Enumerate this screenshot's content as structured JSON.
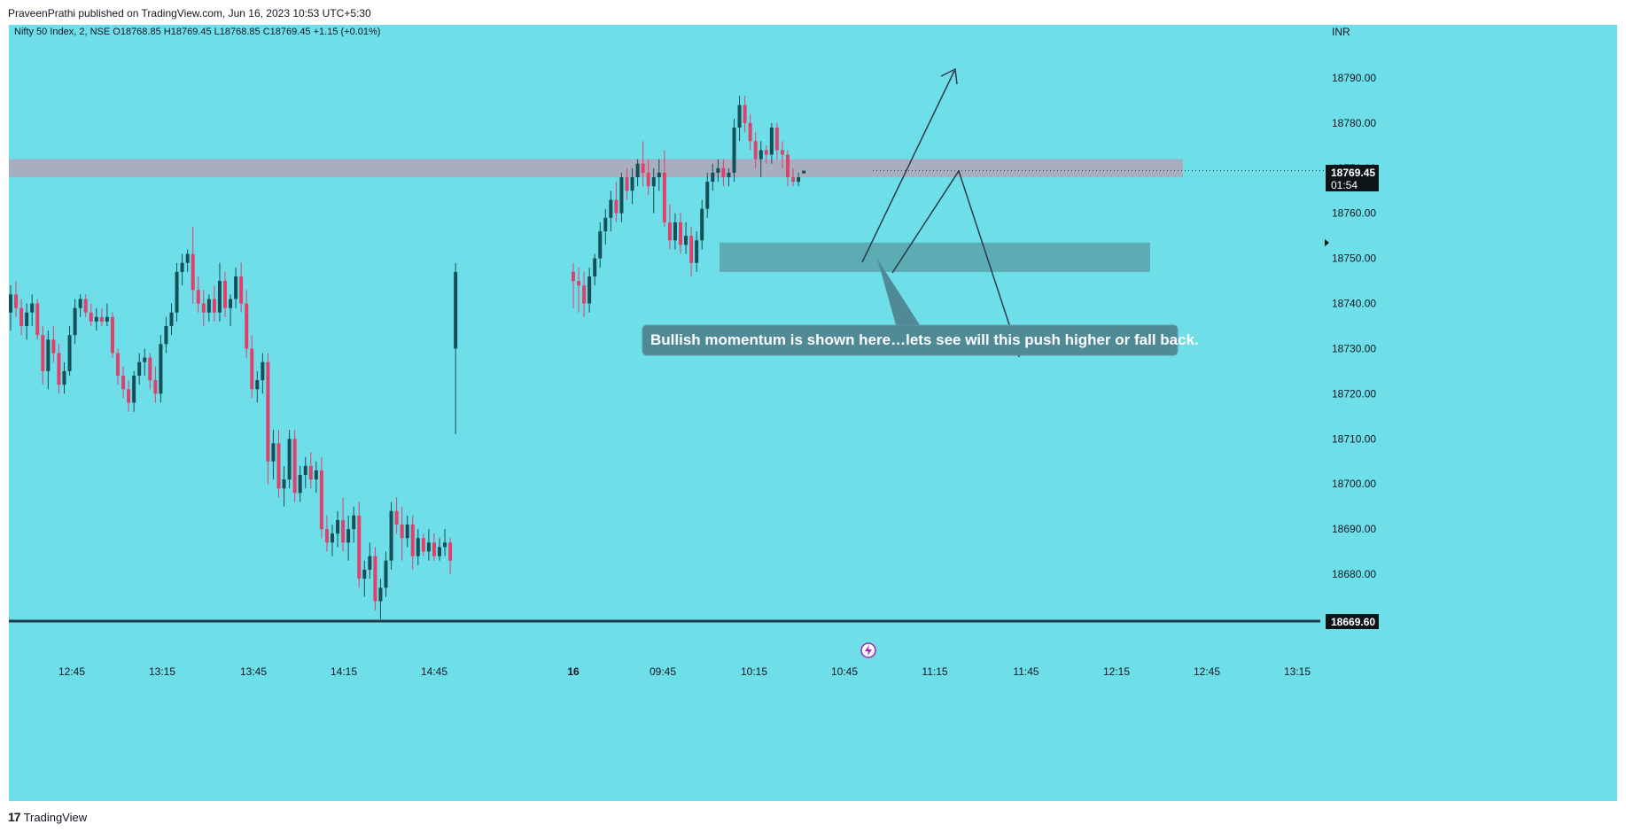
{
  "header": {
    "published": "PraveenPrathi published on TradingView.com, Jun 16, 2023 10:53 UTC+5:30"
  },
  "legend": {
    "symbol": "Nifty 50 Index, 2, NSE",
    "open": "O18768.85",
    "high": "H18769.45",
    "low": "L18768.85",
    "close": "C18769.45",
    "change": "+1.15 (+0.01%)"
  },
  "currency": "INR",
  "last_price": {
    "value": "18769.45",
    "countdown": "01:54"
  },
  "support_line": {
    "label": "18669.60"
  },
  "annotation": {
    "text": "Bullish momentum is shown here…lets see will this push higher or fall back."
  },
  "colors": {
    "background": "#6edee9",
    "up_candle": "#145058",
    "down_candle": "#e0406a",
    "resistance_zone": "#b0a6b8",
    "demand_zone": "#5aa6ad",
    "callout": "#4f8a96",
    "line": "#223a4a"
  },
  "footer": {
    "brand": "TradingView"
  },
  "chart_data": {
    "type": "candlestick",
    "title": "Nifty 50 Index, 2, NSE",
    "xlabel": "",
    "ylabel": "",
    "currency": "INR",
    "y_ticks": [
      18680,
      18690,
      18700,
      18710,
      18720,
      18730,
      18740,
      18750,
      18760,
      18770,
      18780,
      18790
    ],
    "y_tick_labels": [
      "18680.00",
      "18690.00",
      "18700.00",
      "18710.00",
      "18720.00",
      "18730.00",
      "18740.00",
      "18750.00",
      "18760.00",
      "18770.00",
      "18780.00",
      "18790.00"
    ],
    "ylim": [
      18669.0,
      18799.0
    ],
    "x_ticks": [
      {
        "label": "12:45",
        "pos": 81
      },
      {
        "label": "13:15",
        "pos": 183
      },
      {
        "label": "13:45",
        "pos": 286
      },
      {
        "label": "14:15",
        "pos": 388
      },
      {
        "label": "14:45",
        "pos": 490
      },
      {
        "label": "16",
        "pos": 647
      },
      {
        "label": "09:45",
        "pos": 748
      },
      {
        "label": "10:15",
        "pos": 851
      },
      {
        "label": "10:45",
        "pos": 953
      },
      {
        "label": "11:15",
        "pos": 1055
      },
      {
        "label": "11:45",
        "pos": 1158
      },
      {
        "label": "12:15",
        "pos": 1260
      },
      {
        "label": "12:45",
        "pos": 1362
      },
      {
        "label": "13:15",
        "pos": 1464
      }
    ],
    "candles": [
      [
        18738,
        18744,
        18734,
        18742
      ],
      [
        18742,
        18745,
        18737,
        18739
      ],
      [
        18739,
        18741,
        18733,
        18735
      ],
      [
        18735,
        18740,
        18732,
        18738
      ],
      [
        18738,
        18742,
        18735,
        18740
      ],
      [
        18740,
        18741,
        18732,
        18733
      ],
      [
        18733,
        18735,
        18722,
        18725
      ],
      [
        18725,
        18734,
        18721,
        18732
      ],
      [
        18732,
        18735,
        18727,
        18729
      ],
      [
        18729,
        18731,
        18720,
        18722
      ],
      [
        18722,
        18727,
        18720,
        18725
      ],
      [
        18725,
        18735,
        18724,
        18733
      ],
      [
        18733,
        18741,
        18731,
        18739
      ],
      [
        18739,
        18742,
        18737,
        18741
      ],
      [
        18741,
        18742,
        18737,
        18738
      ],
      [
        18738,
        18740,
        18735,
        18736
      ],
      [
        18736,
        18739,
        18734,
        18737
      ],
      [
        18737,
        18739,
        18735,
        18736
      ],
      [
        18736,
        18740,
        18735,
        18737
      ],
      [
        18737,
        18738,
        18728,
        18729
      ],
      [
        18729,
        18730,
        18722,
        18724
      ],
      [
        18724,
        18726,
        18719,
        18721
      ],
      [
        18721,
        18723,
        18716,
        18718
      ],
      [
        18718,
        18725,
        18716,
        18724
      ],
      [
        18724,
        18729,
        18722,
        18727
      ],
      [
        18727,
        18730,
        18724,
        18728
      ],
      [
        18728,
        18729,
        18721,
        18723
      ],
      [
        18723,
        18726,
        18718,
        18720
      ],
      [
        18720,
        18733,
        18718,
        18731
      ],
      [
        18731,
        18737,
        18729,
        18735
      ],
      [
        18735,
        18740,
        18733,
        18738
      ],
      [
        18738,
        18749,
        18736,
        18747
      ],
      [
        18747,
        18751,
        18744,
        18749
      ],
      [
        18749,
        18752,
        18747,
        18751
      ],
      [
        18751,
        18757,
        18740,
        18743
      ],
      [
        18743,
        18746,
        18738,
        18740
      ],
      [
        18740,
        18743,
        18735,
        18738
      ],
      [
        18738,
        18742,
        18736,
        18741
      ],
      [
        18741,
        18744,
        18736,
        18738
      ],
      [
        18738,
        18749,
        18736,
        18745
      ],
      [
        18745,
        18747,
        18737,
        18739
      ],
      [
        18739,
        18742,
        18735,
        18741
      ],
      [
        18741,
        18748,
        18739,
        18746
      ],
      [
        18746,
        18749,
        18738,
        18740
      ],
      [
        18740,
        18743,
        18728,
        18730
      ],
      [
        18730,
        18733,
        18719,
        18721
      ],
      [
        18721,
        18725,
        18718,
        18723
      ],
      [
        18723,
        18729,
        18720,
        18727
      ],
      [
        18727,
        18729,
        18700,
        18705
      ],
      [
        18705,
        18712,
        18701,
        18709
      ],
      [
        18709,
        18712,
        18697,
        18699
      ],
      [
        18699,
        18704,
        18695,
        18701
      ],
      [
        18701,
        18712,
        18699,
        18710
      ],
      [
        18710,
        18712,
        18696,
        18698
      ],
      [
        18698,
        18704,
        18696,
        18702
      ],
      [
        18702,
        18706,
        18699,
        18704
      ],
      [
        18704,
        18707,
        18699,
        18701
      ],
      [
        18701,
        18705,
        18698,
        18703
      ],
      [
        18703,
        18706,
        18688,
        18690
      ],
      [
        18690,
        18693,
        18685,
        18687
      ],
      [
        18687,
        18691,
        18684,
        18689
      ],
      [
        18689,
        18694,
        18686,
        18692
      ],
      [
        18692,
        18697,
        18685,
        18687
      ],
      [
        18687,
        18693,
        18683,
        18690
      ],
      [
        18690,
        18695,
        18687,
        18693
      ],
      [
        18693,
        18696,
        18677,
        18679
      ],
      [
        18679,
        18683,
        18675,
        18681
      ],
      [
        18681,
        18687,
        18679,
        18684
      ],
      [
        18684,
        18686,
        18672,
        18674
      ],
      [
        18674,
        18679,
        18670,
        18677
      ],
      [
        18677,
        18685,
        18675,
        18683
      ],
      [
        18683,
        18696,
        18681,
        18694
      ],
      [
        18694,
        18697,
        18689,
        18691
      ],
      [
        18691,
        18695,
        18683,
        18688
      ],
      [
        18688,
        18693,
        18686,
        18691
      ],
      [
        18691,
        18693,
        18681,
        18684
      ],
      [
        18684,
        18690,
        18682,
        18688
      ],
      [
        18688,
        18689,
        18684,
        18685
      ],
      [
        18685,
        18690,
        18683,
        18687
      ],
      [
        18687,
        18689,
        18683,
        18684
      ],
      [
        18684,
        18688,
        18683,
        18686
      ],
      [
        18686,
        18690,
        18684,
        18687
      ],
      [
        18687,
        18688,
        18680,
        18683
      ],
      [
        18730,
        18749,
        18711,
        18747
      ],
      [
        18747,
        18749,
        18739,
        18745
      ],
      [
        18745,
        18748,
        18738,
        18744
      ],
      [
        18744,
        18747,
        18737,
        18740
      ],
      [
        18740,
        18748,
        18738,
        18746
      ],
      [
        18746,
        18751,
        18744,
        18750
      ],
      [
        18750,
        18758,
        18748,
        18756
      ],
      [
        18756,
        18761,
        18753,
        18759
      ],
      [
        18759,
        18765,
        18756,
        18763
      ],
      [
        18763,
        18767,
        18758,
        18760
      ],
      [
        18760,
        18769,
        18758,
        18768
      ],
      [
        18768,
        18770,
        18763,
        18765
      ],
      [
        18765,
        18770,
        18762,
        18768
      ],
      [
        18768,
        18772,
        18766,
        18771
      ],
      [
        18771,
        18776,
        18766,
        18769
      ],
      [
        18769,
        18772,
        18764,
        18766
      ],
      [
        18766,
        18770,
        18760,
        18768
      ],
      [
        18768,
        18772,
        18765,
        18769
      ],
      [
        18769,
        18774,
        18757,
        18758
      ],
      [
        18758,
        18762,
        18752,
        18754
      ],
      [
        18754,
        18760,
        18752,
        18758
      ],
      [
        18758,
        18760,
        18751,
        18753
      ],
      [
        18753,
        18758,
        18751,
        18755
      ],
      [
        18755,
        18757,
        18746,
        18749
      ],
      [
        18749,
        18756,
        18747,
        18754
      ],
      [
        18754,
        18763,
        18752,
        18761
      ],
      [
        18761,
        18769,
        18759,
        18767
      ],
      [
        18767,
        18771,
        18765,
        18769
      ],
      [
        18769,
        18772,
        18767,
        18770
      ],
      [
        18770,
        18772,
        18766,
        18768
      ],
      [
        18768,
        18770,
        18766,
        18769
      ],
      [
        18769,
        18781,
        18767,
        18779
      ],
      [
        18779,
        18786,
        18776,
        18784
      ],
      [
        18784,
        18786,
        18778,
        18780
      ],
      [
        18780,
        18782,
        18774,
        18776
      ],
      [
        18776,
        18778,
        18770,
        18772
      ],
      [
        18772,
        18776,
        18768,
        18774
      ],
      [
        18774,
        18775,
        18771,
        18773
      ],
      [
        18773,
        18780,
        18771,
        18779
      ],
      [
        18779,
        18780,
        18772,
        18774
      ],
      [
        18774,
        18776,
        18770,
        18773
      ],
      [
        18773,
        18774,
        18766,
        18768
      ],
      [
        18768,
        18770,
        18766,
        18767
      ],
      [
        18767,
        18769,
        18766,
        18768
      ],
      [
        18768.85,
        18769.45,
        18768.85,
        18769.45
      ]
    ]
  }
}
